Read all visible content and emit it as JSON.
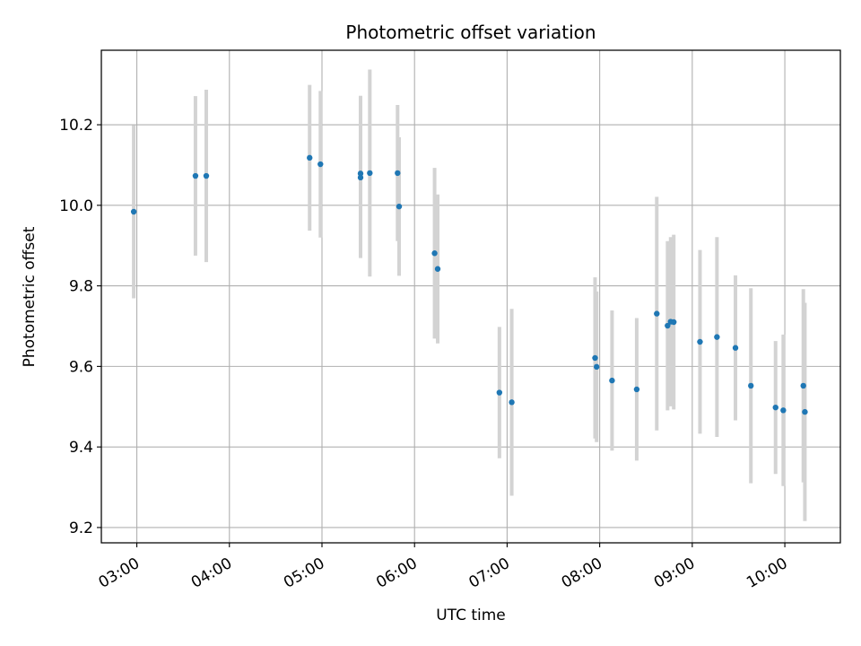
{
  "chart_data": {
    "type": "scatter",
    "title": "Photometric offset variation",
    "xlabel": "UTC time",
    "ylabel": "Photometric offset",
    "x_axis": "time (HH:MM, UTC)",
    "xlim": [
      "02:37",
      "10:36"
    ],
    "ylim": [
      9.162,
      10.385
    ],
    "xticks": [
      "03:00",
      "04:00",
      "05:00",
      "06:00",
      "07:00",
      "08:00",
      "09:00",
      "10:00"
    ],
    "yticks": [
      9.2,
      9.4,
      9.6,
      9.8,
      10.0,
      10.2
    ],
    "ytick_labels": [
      "9.2",
      "9.4",
      "9.6",
      "9.8",
      "10.0",
      "10.2"
    ],
    "grid": true,
    "legend": "none",
    "colors": {
      "point": "#1f77b4",
      "errorbar": "#d3d3d3",
      "grid": "#b0b0b0"
    },
    "series": [
      {
        "points": [
          {
            "x": "02:58",
            "y": 9.984,
            "err": 0.215
          },
          {
            "x": "03:38",
            "y": 10.073,
            "err": 0.198
          },
          {
            "x": "03:45",
            "y": 10.073,
            "err": 0.214
          },
          {
            "x": "04:52",
            "y": 10.118,
            "err": 0.181
          },
          {
            "x": "04:59",
            "y": 10.102,
            "err": 0.182
          },
          {
            "x": "05:25",
            "y": 10.079,
            "err": 0.193
          },
          {
            "x": "05:25",
            "y": 10.069,
            "err": 0.2
          },
          {
            "x": "05:31",
            "y": 10.08,
            "err": 0.257
          },
          {
            "x": "05:49",
            "y": 10.08,
            "err": 0.169
          },
          {
            "x": "05:50",
            "y": 9.997,
            "err": 0.172
          },
          {
            "x": "06:13",
            "y": 9.881,
            "err": 0.212
          },
          {
            "x": "06:15",
            "y": 9.842,
            "err": 0.185
          },
          {
            "x": "06:55",
            "y": 9.535,
            "err": 0.163
          },
          {
            "x": "07:03",
            "y": 9.511,
            "err": 0.232
          },
          {
            "x": "07:57",
            "y": 9.621,
            "err": 0.2
          },
          {
            "x": "07:58",
            "y": 9.599,
            "err": 0.187
          },
          {
            "x": "08:08",
            "y": 9.565,
            "err": 0.174
          },
          {
            "x": "08:24",
            "y": 9.543,
            "err": 0.177
          },
          {
            "x": "08:37",
            "y": 9.731,
            "err": 0.29
          },
          {
            "x": "08:44",
            "y": 9.701,
            "err": 0.21
          },
          {
            "x": "08:46",
            "y": 9.711,
            "err": 0.21
          },
          {
            "x": "08:48",
            "y": 9.71,
            "err": 0.217
          },
          {
            "x": "09:05",
            "y": 9.661,
            "err": 0.228
          },
          {
            "x": "09:16",
            "y": 9.673,
            "err": 0.248
          },
          {
            "x": "09:28",
            "y": 9.646,
            "err": 0.18
          },
          {
            "x": "09:38",
            "y": 9.552,
            "err": 0.242
          },
          {
            "x": "09:54",
            "y": 9.498,
            "err": 0.165
          },
          {
            "x": "09:59",
            "y": 9.491,
            "err": 0.188
          },
          {
            "x": "10:12",
            "y": 9.552,
            "err": 0.24
          },
          {
            "x": "10:13",
            "y": 9.487,
            "err": 0.271
          }
        ]
      }
    ]
  }
}
